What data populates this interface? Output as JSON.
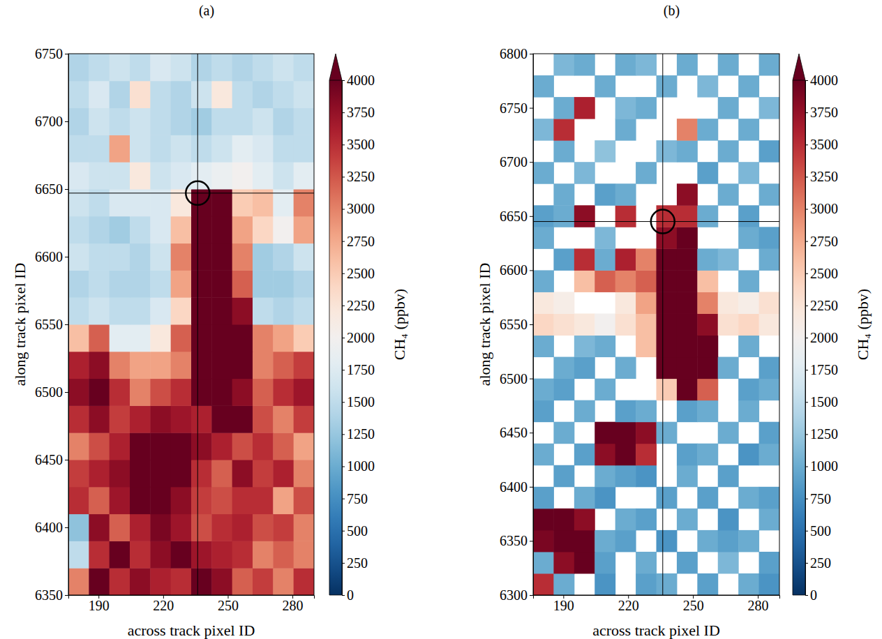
{
  "chart_data": [
    {
      "type": "heatmap",
      "title": "(a)",
      "xlabel": "across track pixel ID",
      "ylabel": "along track pixel ID",
      "xlim": [
        176,
        290
      ],
      "ylim": [
        6350,
        6750
      ],
      "xticks": [
        190,
        220,
        250,
        280
      ],
      "yticks": [
        6350,
        6400,
        6450,
        6500,
        6550,
        6600,
        6650,
        6700,
        6750
      ],
      "x_bins": [
        176,
        185.5,
        195,
        204.5,
        214,
        223.5,
        233,
        242.5,
        252,
        261.5,
        271,
        280.5,
        290
      ],
      "y_bins": [
        6350,
        6370,
        6390,
        6410,
        6430,
        6450,
        6470,
        6490,
        6510,
        6530,
        6550,
        6570,
        6590,
        6610,
        6630,
        6650,
        6670,
        6690,
        6710,
        6730,
        6750
      ],
      "values": [
        [
          3000,
          4000,
          3500,
          3800,
          3600,
          3500,
          4000,
          3800,
          3200,
          3400,
          3000,
          3500
        ],
        [
          1500,
          3500,
          4000,
          3500,
          3800,
          4000,
          3700,
          3600,
          3500,
          3000,
          3200,
          3000
        ],
        [
          1200,
          3800,
          3200,
          3600,
          3900,
          3700,
          3300,
          3500,
          3600,
          3300,
          3400,
          3000
        ],
        [
          3500,
          3200,
          3700,
          4000,
          4000,
          3800,
          3400,
          3300,
          3500,
          3500,
          2800,
          3300
        ],
        [
          3400,
          3600,
          3800,
          4000,
          4000,
          4000,
          3500,
          3200,
          3800,
          3400,
          3600,
          3000
        ],
        [
          3000,
          3300,
          3600,
          4000,
          4000,
          4000,
          3800,
          3600,
          3300,
          3500,
          3200,
          2800
        ],
        [
          3500,
          3800,
          3400,
          3600,
          3800,
          3700,
          3600,
          4000,
          4000,
          3300,
          3000,
          3400
        ],
        [
          3800,
          4000,
          3500,
          3000,
          3300,
          3500,
          4000,
          4000,
          3800,
          3200,
          3500,
          3700
        ],
        [
          3600,
          3800,
          3000,
          2800,
          2800,
          3000,
          4000,
          4000,
          4000,
          3000,
          3200,
          3400
        ],
        [
          2600,
          3200,
          1800,
          1800,
          2200,
          3200,
          4000,
          4000,
          4000,
          3000,
          2800,
          2500
        ],
        [
          1500,
          1600,
          1500,
          1500,
          1700,
          2400,
          4000,
          4000,
          3800,
          1500,
          1400,
          1500
        ],
        [
          1400,
          1500,
          1400,
          1400,
          1500,
          2800,
          4000,
          4000,
          3200,
          1300,
          1300,
          1400
        ],
        [
          1600,
          1500,
          1500,
          1400,
          1600,
          3000,
          4000,
          4000,
          3000,
          1300,
          1400,
          1600
        ],
        [
          1500,
          1400,
          1300,
          1500,
          1700,
          2600,
          4000,
          4000,
          2800,
          2400,
          2000,
          2800
        ],
        [
          1600,
          1500,
          1700,
          1700,
          1700,
          2200,
          4000,
          4000,
          2500,
          2600,
          1800,
          3000
        ],
        [
          1700,
          1600,
          1600,
          2200,
          1600,
          1700,
          1800,
          1900,
          2000,
          1800,
          1600,
          1800
        ],
        [
          1500,
          1500,
          2800,
          1600,
          1500,
          1600,
          1500,
          1600,
          1800,
          1700,
          1500,
          1500
        ],
        [
          1400,
          1600,
          1500,
          1600,
          1500,
          1400,
          1300,
          1500,
          1500,
          1600,
          1400,
          1500
        ],
        [
          1500,
          1700,
          1400,
          2300,
          1500,
          1400,
          1600,
          2200,
          1500,
          1400,
          1500,
          1600
        ],
        [
          1400,
          1500,
          1600,
          1500,
          1700,
          1600,
          1400,
          1500,
          1400,
          1500,
          1600,
          1500
        ]
      ],
      "source": {
        "x": 236,
        "y": 6647
      },
      "colorbar": {
        "label": "CH₄ (ppbv)",
        "lim": [
          0,
          4000
        ],
        "ticks": [
          0,
          250,
          500,
          750,
          1000,
          1250,
          1500,
          1750,
          2000,
          2250,
          2500,
          2750,
          3000,
          3250,
          3500,
          3750,
          4000
        ]
      }
    },
    {
      "type": "heatmap",
      "title": "(b)",
      "xlabel": "across track pixel ID",
      "ylabel": "along track pixel ID",
      "xlim": [
        176,
        290
      ],
      "ylim": [
        6300,
        6800
      ],
      "xticks": [
        190,
        220,
        250,
        280
      ],
      "yticks": [
        6300,
        6350,
        6400,
        6450,
        6500,
        6550,
        6600,
        6650,
        6700,
        6750,
        6800
      ],
      "x_bins": [
        176,
        185.5,
        195,
        204.5,
        214,
        223.5,
        233,
        242.5,
        252,
        261.5,
        271,
        280.5,
        290
      ],
      "y_bins": [
        6300,
        6320,
        6340,
        6360,
        6380,
        6400,
        6420,
        6440,
        6460,
        6480,
        6500,
        6520,
        6540,
        6560,
        6580,
        6600,
        6620,
        6640,
        6660,
        6680,
        6700,
        6720,
        6740,
        6760,
        6780,
        6800
      ],
      "values": [
        [
          3500,
          1000,
          null,
          800,
          null,
          900,
          1000,
          null,
          900,
          null,
          1000,
          800
        ],
        [
          1000,
          3800,
          4000,
          900,
          null,
          1000,
          null,
          900,
          null,
          1100,
          null,
          900
        ],
        [
          3900,
          4000,
          4000,
          1000,
          900,
          null,
          800,
          null,
          1000,
          900,
          1000,
          null
        ],
        [
          4000,
          4000,
          3800,
          null,
          1000,
          900,
          null,
          1000,
          null,
          800,
          null,
          1000
        ],
        [
          900,
          null,
          1000,
          800,
          null,
          null,
          900,
          null,
          900,
          null,
          1000,
          900
        ],
        [
          null,
          900,
          null,
          1000,
          900,
          800,
          null,
          1000,
          null,
          900,
          null,
          null
        ],
        [
          1000,
          null,
          900,
          3800,
          4000,
          3500,
          null,
          900,
          1000,
          null,
          800,
          1000
        ],
        [
          null,
          1000,
          null,
          4000,
          4000,
          3800,
          1000,
          null,
          null,
          1000,
          null,
          900
        ],
        [
          900,
          null,
          1000,
          null,
          900,
          1000,
          null,
          900,
          1000,
          null,
          1000,
          null
        ],
        [
          1000,
          900,
          null,
          1000,
          null,
          null,
          2500,
          4000,
          3200,
          null,
          900,
          1000
        ],
        [
          null,
          1000,
          900,
          null,
          1000,
          null,
          4000,
          4000,
          4000,
          1000,
          null,
          900
        ],
        [
          1000,
          null,
          1100,
          1000,
          null,
          2600,
          4000,
          4000,
          4000,
          null,
          1000,
          null
        ],
        [
          2400,
          2300,
          2200,
          2000,
          2300,
          2600,
          4000,
          4000,
          3800,
          2300,
          2400,
          2200
        ],
        [
          2200,
          2100,
          null,
          null,
          2200,
          2800,
          4000,
          4000,
          3000,
          2200,
          2100,
          2300
        ],
        [
          1000,
          null,
          2600,
          3200,
          3000,
          3200,
          4000,
          4000,
          2600,
          null,
          1000,
          null
        ],
        [
          null,
          900,
          3500,
          1000,
          3600,
          3000,
          4000,
          4000,
          1000,
          1100,
          null,
          1000
        ],
        [
          1000,
          null,
          null,
          1100,
          null,
          null,
          3800,
          4000,
          null,
          null,
          1000,
          900
        ],
        [
          900,
          1000,
          3800,
          null,
          3500,
          null,
          3500,
          3500,
          1000,
          null,
          900,
          null
        ],
        [
          null,
          1000,
          null,
          900,
          1000,
          null,
          null,
          3800,
          null,
          1000,
          null,
          1000
        ],
        [
          1000,
          null,
          1100,
          null,
          null,
          1000,
          null,
          null,
          900,
          null,
          1100,
          null
        ],
        [
          null,
          1000,
          null,
          1200,
          null,
          null,
          1100,
          1000,
          null,
          1000,
          null,
          900
        ],
        [
          1100,
          3500,
          null,
          null,
          1000,
          null,
          null,
          3000,
          1000,
          null,
          1000,
          null
        ],
        [
          null,
          1000,
          3600,
          null,
          1100,
          1000,
          null,
          null,
          null,
          1000,
          null,
          1100
        ],
        [
          1000,
          null,
          null,
          1000,
          null,
          null,
          1000,
          null,
          1100,
          null,
          1000,
          null
        ],
        [
          null,
          1100,
          1000,
          null,
          1000,
          1100,
          null,
          1000,
          null,
          1000,
          null,
          1000
        ]
      ],
      "source": {
        "x": 236,
        "y": 6645
      },
      "colorbar": {
        "label": "CH₄ (ppbv)",
        "lim": [
          0,
          4000
        ],
        "ticks": [
          0,
          250,
          500,
          750,
          1000,
          1250,
          1500,
          1750,
          2000,
          2250,
          2500,
          2750,
          3000,
          3250,
          3500,
          3750,
          4000
        ]
      }
    }
  ]
}
